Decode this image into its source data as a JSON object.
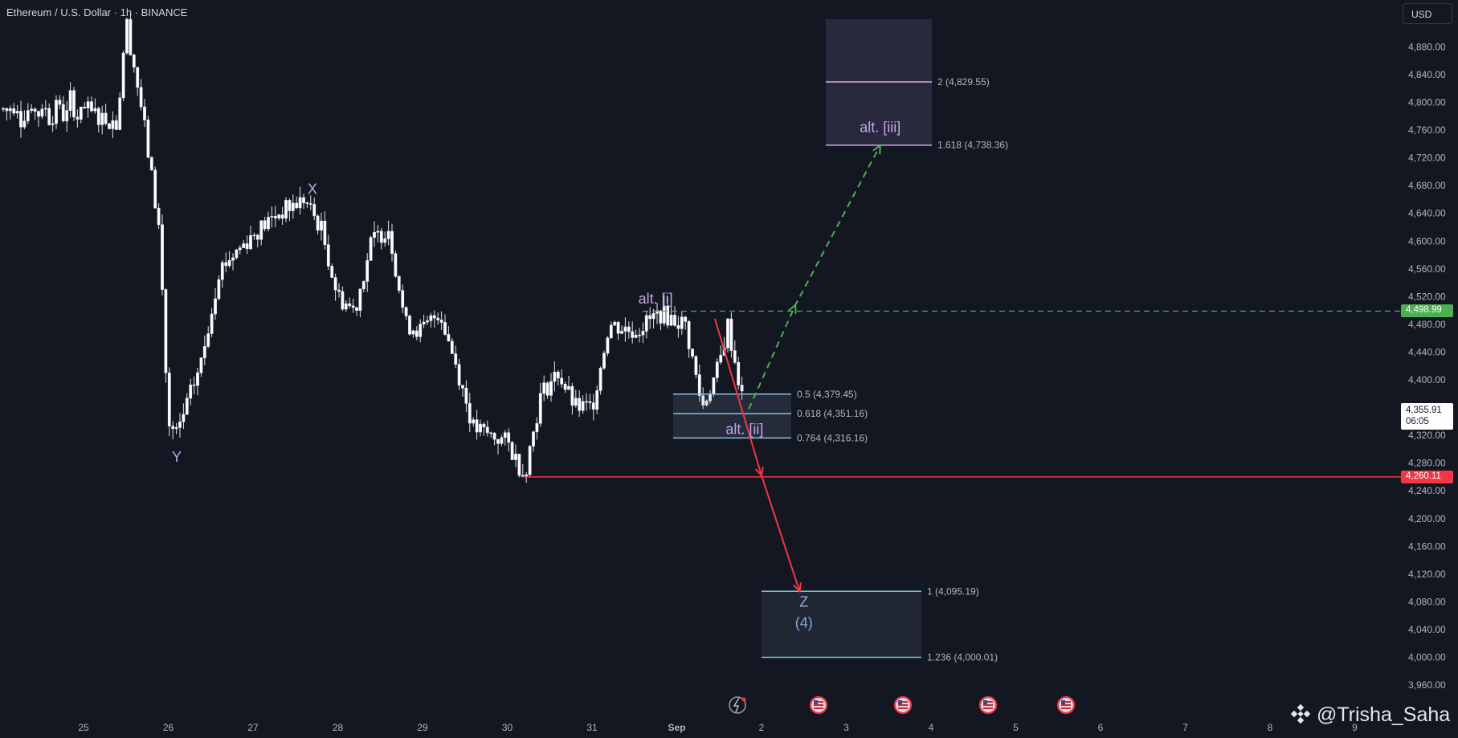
{
  "header": {
    "title": "Ethereum / U.S. Dollar · 1h · BINANCE"
  },
  "currency": {
    "label": "USD"
  },
  "watermark": {
    "text": "@Trisha_Saha",
    "icon": "binance-logo-icon"
  },
  "price_badges": {
    "level_high": {
      "label": "4,498.99",
      "color": "#4caf50"
    },
    "current": {
      "label": "4,355.91",
      "countdown": "06:05",
      "color": "#ffffff"
    },
    "level_low": {
      "label": "4,260.11",
      "color": "#f23645"
    }
  },
  "event_icons": [
    "flash-icon",
    "us-flag-icon",
    "us-flag-icon",
    "us-flag-icon",
    "us-flag-icon"
  ],
  "chart_data": {
    "type": "candlestick",
    "symbol": "ETHUSD",
    "interval": "1h",
    "exchange": "BINANCE",
    "x_axis": {
      "ticks": [
        "25",
        "26",
        "27",
        "28",
        "29",
        "30",
        "31",
        "Sep",
        "2",
        "3",
        "4",
        "5",
        "6",
        "7",
        "8",
        "9"
      ]
    },
    "y_axis": {
      "range": [
        3940,
        4920
      ],
      "ticks": [
        3960,
        4000,
        4040,
        4080,
        4120,
        4160,
        4200,
        4240,
        4280,
        4320,
        4360,
        4400,
        4440,
        4480,
        4520,
        4560,
        4600,
        4640,
        4680,
        4720,
        4760,
        4800,
        4840,
        4880
      ],
      "tick_labels": [
        "3,960.00",
        "4,000.00",
        "4,040.00",
        "4,080.00",
        "4,120.00",
        "4,160.00",
        "4,200.00",
        "4,240.00",
        "4,280.00",
        "4,320.00",
        "4,360.00",
        "4,400.00",
        "4,440.00",
        "4,480.00",
        "4,520.00",
        "4,560.00",
        "4,600.00",
        "4,640.00",
        "4,680.00",
        "4,720.00",
        "4,760.00",
        "4,800.00",
        "4,840.00",
        "4,880.00"
      ]
    },
    "price_path": [
      [
        "25",
        4790
      ],
      [
        "25.4",
        4770
      ],
      [
        "25.5",
        4920
      ],
      [
        "25.7",
        4780
      ],
      [
        "25.9",
        4610
      ],
      [
        "26",
        4330
      ],
      [
        "26.1",
        4320
      ],
      [
        "26.4",
        4430
      ],
      [
        "26.6",
        4560
      ],
      [
        "27",
        4610
      ],
      [
        "27.3",
        4640
      ],
      [
        "27.6",
        4660
      ],
      [
        "27.8",
        4620
      ],
      [
        "28",
        4520
      ],
      [
        "28.2",
        4500
      ],
      [
        "28.4",
        4600
      ],
      [
        "28.6",
        4620
      ],
      [
        "28.8",
        4480
      ],
      [
        "29",
        4470
      ],
      [
        "29.2",
        4500
      ],
      [
        "29.4",
        4420
      ],
      [
        "29.6",
        4330
      ],
      [
        "29.8",
        4320
      ],
      [
        "30",
        4310
      ],
      [
        "30.2",
        4262
      ],
      [
        "30.4",
        4380
      ],
      [
        "30.6",
        4410
      ],
      [
        "30.8",
        4360
      ],
      [
        "31",
        4360
      ],
      [
        "31.2",
        4480
      ],
      [
        "31.5",
        4470
      ],
      [
        "31.8",
        4496
      ],
      [
        "Sep 1.1",
        4480
      ],
      [
        "Sep 1.3",
        4360
      ],
      [
        "Sep 1.5",
        4420
      ],
      [
        "Sep 1.6",
        4480
      ],
      [
        "Sep 1.8",
        4356
      ]
    ],
    "wave_labels": [
      {
        "text": "X",
        "date": "27.7",
        "price": 4668
      },
      {
        "text": "Y",
        "date": "26.1",
        "price": 4282
      },
      {
        "text": "alt. [i]",
        "date": "31.75",
        "price": 4510
      },
      {
        "text": "alt. [ii]",
        "date": "Sep 1.8",
        "price": 4322
      },
      {
        "text": "alt. [iii]",
        "date": "Sep 3.4",
        "price": 4757
      },
      {
        "text": "Z",
        "date": "Sep 2.5",
        "price": 4073
      },
      {
        "text": "(4)",
        "date": "Sep 2.5",
        "price": 4043
      }
    ],
    "fib_levels": [
      {
        "ratio": "0.5",
        "price": 4379.45,
        "label": "0.5 (4,379.45)"
      },
      {
        "ratio": "0.618",
        "price": 4351.16,
        "label": "0.618 (4,351.16)"
      },
      {
        "ratio": "0.764",
        "price": 4316.16,
        "label": "0.764 (4,316.16)"
      },
      {
        "ratio": "1.618",
        "price": 4738.36,
        "label": "1.618 (4,738.36)"
      },
      {
        "ratio": "2",
        "price": 4829.55,
        "label": "2 (4,829.55)"
      },
      {
        "ratio": "1",
        "price": 4095.19,
        "label": "1 (4,095.19)"
      },
      {
        "ratio": "1.236",
        "price": 4000.01,
        "label": "1.236 (4,000.01)"
      }
    ],
    "horizontal_lines": [
      {
        "price": 4498.99,
        "style": "dashed",
        "color": "#4caf50"
      },
      {
        "price": 4260.11,
        "style": "solid",
        "color": "#f23645"
      }
    ],
    "projections": [
      {
        "color": "#4caf50",
        "style": "dashed",
        "points": [
          [
            "Sep 1.85",
            4358
          ],
          [
            "Sep 2.4",
            4508
          ],
          [
            "Sep 3.4",
            4738
          ]
        ]
      },
      {
        "color": "#f23645",
        "style": "solid",
        "points": [
          [
            "Sep 1.45",
            4488
          ],
          [
            "Sep 2.0",
            4262
          ],
          [
            "Sep 2.45",
            4095
          ]
        ]
      }
    ]
  }
}
